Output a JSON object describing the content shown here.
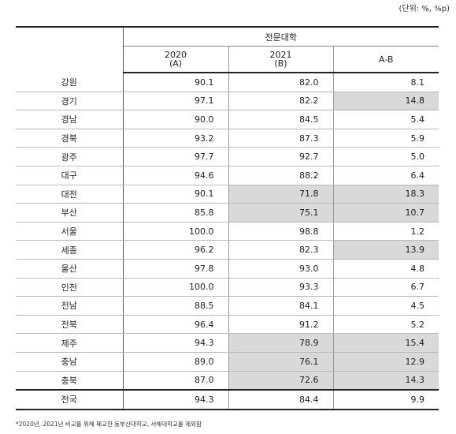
{
  "unit_label": "(단위: %, %p)",
  "header": {
    "group": "전문대학",
    "col_a": {
      "year": "2020",
      "tag": "(A)"
    },
    "col_b": {
      "year": "2021",
      "tag": "(B)"
    },
    "col_diff": "A-B"
  },
  "rows": [
    {
      "region": "강원",
      "a": "90.1",
      "b": "82.0",
      "diff": "8.1",
      "hl_b": false,
      "hl_diff": false
    },
    {
      "region": "경기",
      "a": "97.1",
      "b": "82.2",
      "diff": "14.8",
      "hl_b": false,
      "hl_diff": true
    },
    {
      "region": "경남",
      "a": "90.0",
      "b": "84.5",
      "diff": "5.4",
      "hl_b": false,
      "hl_diff": false
    },
    {
      "region": "경북",
      "a": "93.2",
      "b": "87.3",
      "diff": "5.9",
      "hl_b": false,
      "hl_diff": false
    },
    {
      "region": "광주",
      "a": "97.7",
      "b": "92.7",
      "diff": "5.0",
      "hl_b": false,
      "hl_diff": false
    },
    {
      "region": "대구",
      "a": "94.6",
      "b": "88.2",
      "diff": "6.4",
      "hl_b": false,
      "hl_diff": false
    },
    {
      "region": "대전",
      "a": "90.1",
      "b": "71.8",
      "diff": "18.3",
      "hl_b": true,
      "hl_diff": true
    },
    {
      "region": "부산",
      "a": "85.8",
      "b": "75.1",
      "diff": "10.7",
      "hl_b": true,
      "hl_diff": true
    },
    {
      "region": "서울",
      "a": "100.0",
      "b": "98.8",
      "diff": "1.2",
      "hl_b": false,
      "hl_diff": false
    },
    {
      "region": "세종",
      "a": "96.2",
      "b": "82.3",
      "diff": "13.9",
      "hl_b": false,
      "hl_diff": true
    },
    {
      "region": "울산",
      "a": "97.8",
      "b": "93.0",
      "diff": "4.8",
      "hl_b": false,
      "hl_diff": false
    },
    {
      "region": "인천",
      "a": "100.0",
      "b": "93.3",
      "diff": "6.7",
      "hl_b": false,
      "hl_diff": false
    },
    {
      "region": "전남",
      "a": "88.5",
      "b": "84.1",
      "diff": "4.5",
      "hl_b": false,
      "hl_diff": false
    },
    {
      "region": "전북",
      "a": "96.4",
      "b": "91.2",
      "diff": "5.2",
      "hl_b": false,
      "hl_diff": false
    },
    {
      "region": "제주",
      "a": "94.3",
      "b": "78.9",
      "diff": "15.4",
      "hl_b": true,
      "hl_diff": true
    },
    {
      "region": "충남",
      "a": "89.0",
      "b": "76.1",
      "diff": "12.9",
      "hl_b": true,
      "hl_diff": true
    },
    {
      "region": "충북",
      "a": "87.0",
      "b": "72.6",
      "diff": "14.3",
      "hl_b": true,
      "hl_diff": true
    }
  ],
  "total": {
    "region": "전국",
    "a": "94.3",
    "b": "84.4",
    "diff": "9.9"
  },
  "footnote": "*2020년, 2021년 비교를 위해 폐교한 동부산대학교, 서해대학교를 제외함",
  "colors": {
    "highlight": "#d9d9d9"
  }
}
